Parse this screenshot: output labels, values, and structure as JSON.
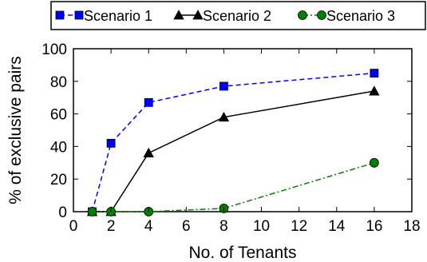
{
  "chart_data": {
    "type": "line",
    "xlabel": "No. of Tenants",
    "ylabel": "% of exclusive pairs",
    "xlim": [
      0,
      18
    ],
    "ylim": [
      0,
      100
    ],
    "xticks": [
      "0",
      "2",
      "4",
      "6",
      "8",
      "10",
      "12",
      "14",
      "16",
      "18"
    ],
    "yticks": [
      "0",
      "20",
      "40",
      "60",
      "80",
      "100"
    ],
    "grid": false,
    "legend_position": "top",
    "series": [
      {
        "name": "Scenario 1",
        "color": "#0000ff",
        "line_style": "dashed",
        "marker": "square",
        "x": [
          1,
          2,
          4,
          8,
          16
        ],
        "y": [
          0,
          42,
          67,
          77,
          85
        ]
      },
      {
        "name": "Scenario 2",
        "color": "#000000",
        "line_style": "solid",
        "marker": "triangle",
        "x": [
          1,
          2,
          4,
          8,
          16
        ],
        "y": [
          0,
          0,
          36,
          58,
          74
        ]
      },
      {
        "name": "Scenario 3",
        "color": "#008000",
        "line_style": "dashdot",
        "marker": "circle",
        "x": [
          1,
          2,
          4,
          8,
          16
        ],
        "y": [
          0,
          0,
          0,
          2,
          30
        ]
      }
    ]
  }
}
